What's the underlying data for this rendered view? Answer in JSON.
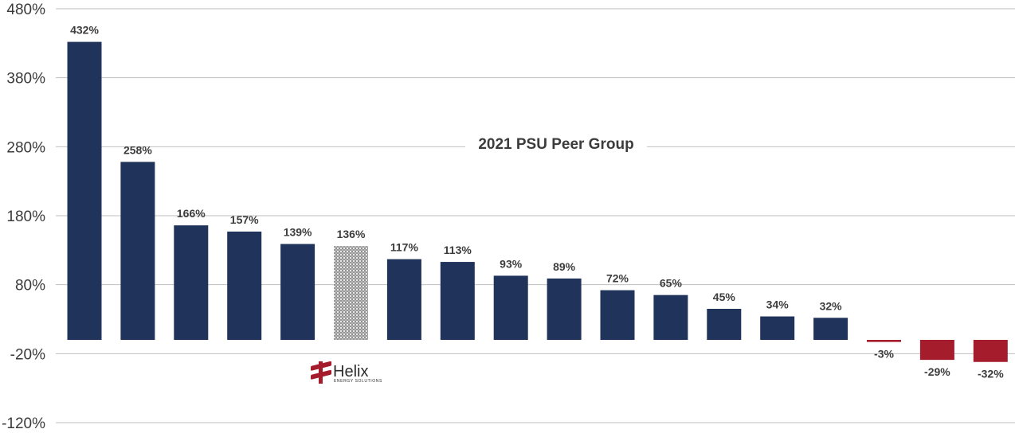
{
  "chart_data": {
    "type": "bar",
    "title": "2021 PSU Peer Group",
    "ylim": [
      -120,
      480
    ],
    "yticks": [
      480,
      380,
      280,
      180,
      80,
      -20,
      -120
    ],
    "ytick_labels": [
      "480%",
      "380%",
      "280%",
      "180%",
      "80%",
      "-20%",
      "-120%"
    ],
    "grid": true,
    "values": [
      432,
      258,
      166,
      157,
      139,
      136,
      117,
      113,
      93,
      89,
      72,
      65,
      45,
      34,
      32,
      -3,
      -29,
      -32
    ],
    "labels": [
      "432%",
      "258%",
      "166%",
      "157%",
      "139%",
      "136%",
      "117%",
      "113%",
      "93%",
      "89%",
      "72%",
      "65%",
      "45%",
      "34%",
      "32%",
      "-3%",
      "-29%",
      "-32%"
    ],
    "highlight_index": 5,
    "colors": {
      "positive": "#20335b",
      "negative": "#a51d2d",
      "highlight_pattern": "#555555",
      "grid": "#bfbfbf"
    }
  },
  "logo": {
    "name": "Helix",
    "tagline": "ENERGY SOLUTIONS",
    "color": "#a51d2d"
  }
}
